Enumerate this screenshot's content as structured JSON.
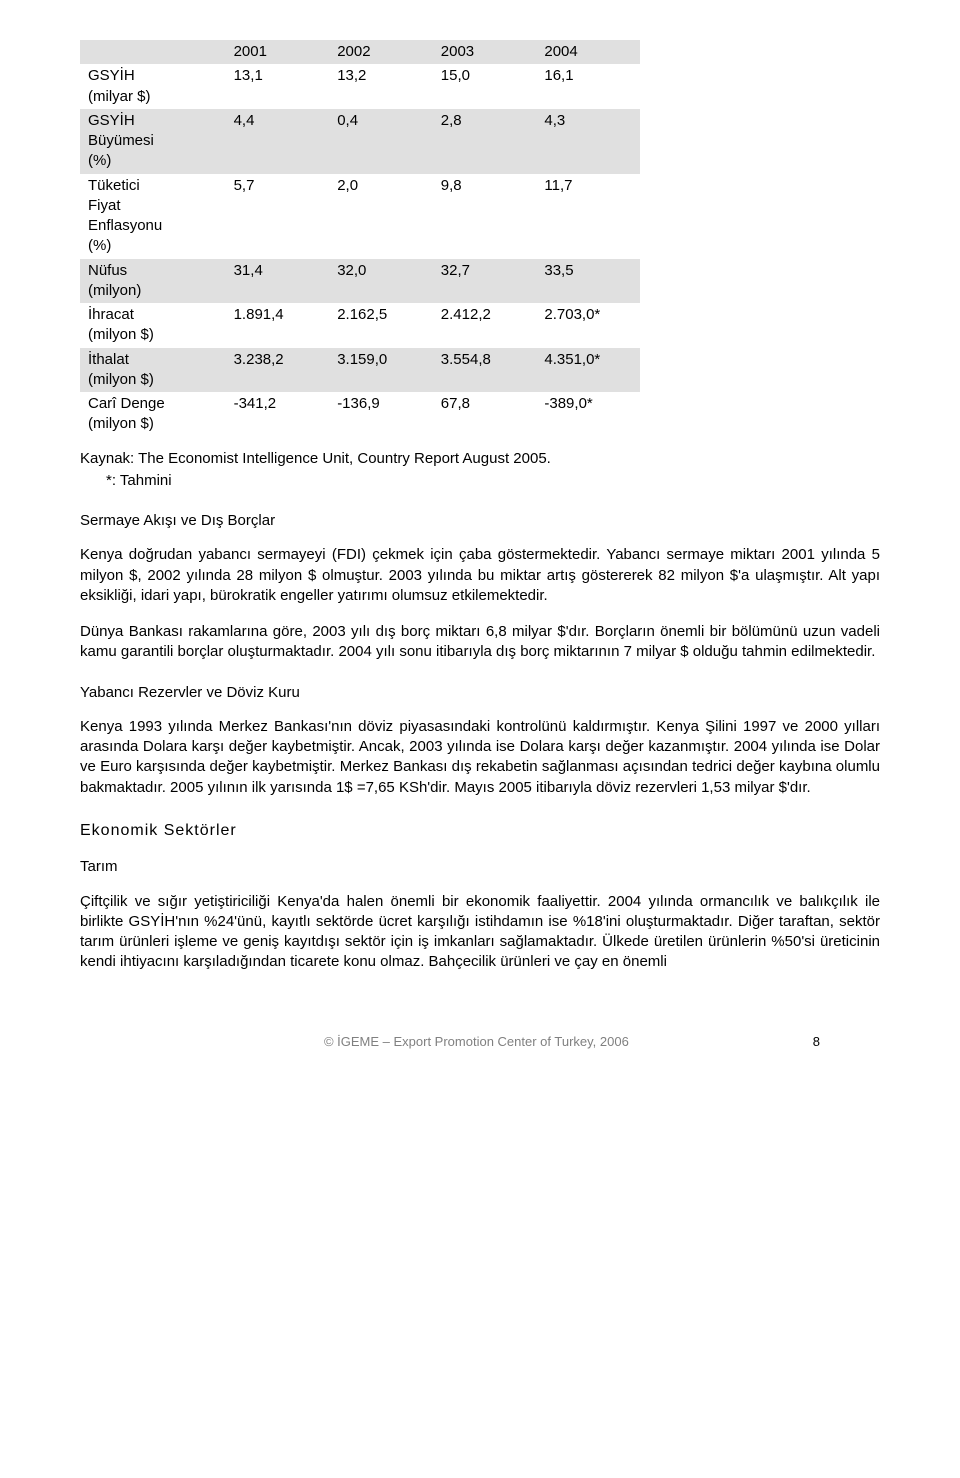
{
  "table": {
    "header_bg": "#e0e0e0",
    "alt_bg": "#e0e0e0",
    "columns": [
      "",
      "2001",
      "2002",
      "2003",
      "2004"
    ],
    "rows": [
      {
        "labelLines": [
          "GSYİH",
          "(milyar $)"
        ],
        "cells": [
          "13,1",
          "13,2",
          "15,0",
          "16,1"
        ],
        "alt": false
      },
      {
        "labelLines": [
          "GSYİH",
          "Büyümesi",
          "(%)"
        ],
        "cells": [
          "4,4",
          "0,4",
          "2,8",
          "4,3"
        ],
        "alt": true
      },
      {
        "labelLines": [
          "Tüketici",
          "Fiyat",
          "Enflasyonu",
          "(%)"
        ],
        "cells": [
          "5,7",
          "2,0",
          "9,8",
          "11,7"
        ],
        "alt": false
      },
      {
        "labelLines": [
          "Nüfus",
          "(milyon)"
        ],
        "cells": [
          "31,4",
          "32,0",
          "32,7",
          "33,5"
        ],
        "alt": true
      },
      {
        "labelLines": [
          "İhracat",
          "(milyon $)"
        ],
        "cells": [
          "1.891,4",
          "2.162,5",
          "2.412,2",
          "2.703,0*"
        ],
        "alt": false
      },
      {
        "labelLines": [
          "İthalat",
          "(milyon $)"
        ],
        "cells": [
          "3.238,2",
          "3.159,0",
          "3.554,8",
          "4.351,0*"
        ],
        "alt": true
      },
      {
        "labelLines": [
          "Carî Denge",
          "(milyon $)"
        ],
        "cells": [
          "-341,2",
          "-136,9",
          "67,8",
          "-389,0*"
        ],
        "alt": false
      }
    ]
  },
  "sourceNote": "Kaynak: The Economist Intelligence Unit, Country Report August 2005.",
  "estimateNote": "*: Tahmini",
  "sections": {
    "s1": {
      "title": "Sermaye Akışı ve Dış Borçlar",
      "p1": "Kenya doğrudan yabancı sermayeyi (FDI) çekmek için çaba göstermektedir. Yabancı sermaye miktarı 2001 yılında 5 milyon $, 2002 yılında 28 milyon $ olmuştur. 2003 yılında bu miktar artış göstererek 82 milyon $'a ulaşmıştır. Alt yapı eksikliği, idari yapı, bürokratik engeller yatırımı olumsuz etkilemektedir.",
      "p2": "Dünya Bankası rakamlarına göre, 2003 yılı dış borç miktarı 6,8 milyar $'dır. Borçların önemli bir bölümünü uzun vadeli kamu garantili borçlar oluşturmaktadır. 2004 yılı sonu itibarıyla dış borç miktarının 7 milyar $ olduğu tahmin edilmektedir."
    },
    "s2": {
      "title": "Yabancı Rezervler ve Döviz Kuru",
      "p1": "Kenya 1993 yılında Merkez Bankası'nın döviz piyasasındaki kontrolünü kaldırmıştır. Kenya Şilini 1997 ve 2000 yılları arasında Dolara  karşı değer kaybetmiştir. Ancak, 2003 yılında ise Dolara karşı değer kazanmıştır. 2004 yılında ise Dolar ve Euro karşısında değer kaybetmiştir. Merkez Bankası dış rekabetin sağlanması açısından tedrici değer kaybına olumlu bakmaktadır. 2005 yılının ilk yarısında 1$ =7,65 KSh'dir. Mayıs 2005 itibarıyla döviz rezervleri 1,53 milyar $'dır."
    },
    "s3": {
      "title": "Ekonomik  Sektörler",
      "sub": "Tarım",
      "p1": "Çiftçilik ve sığır yetiştiriciliği Kenya'da halen önemli bir ekonomik faaliyettir. 2004 yılında ormancılık ve balıkçılık ile birlikte GSYİH'nın %24'ünü, kayıtlı sektörde ücret karşılığı istihdamın ise %18'ini oluşturmaktadır. Diğer taraftan, sektör tarım ürünleri işleme ve geniş kayıtdışı sektör için iş imkanları sağlamaktadır. Ülkede üretilen ürünlerin %50'si üreticinin kendi ihtiyacını karşıladığından ticarete konu olmaz. Bahçecilik ürünleri ve çay en önemli"
    }
  },
  "footer": {
    "center": "© İGEME – Export Promotion Center of Turkey, 2006",
    "page": "8"
  }
}
